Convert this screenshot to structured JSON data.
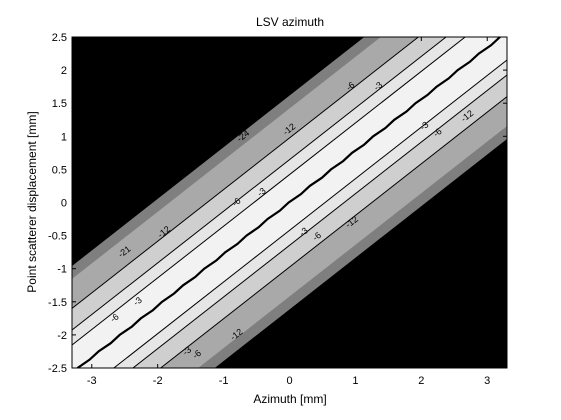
{
  "chart_data": {
    "type": "contour",
    "title": "LSV azimuth",
    "xlabel": "Azimuth [mm]",
    "ylabel": "Point scatterer displacement [mm]",
    "xlim": [
      -3.3,
      3.3
    ],
    "ylim": [
      -2.5,
      2.5
    ],
    "x_ticks": [
      -3,
      -2,
      -1,
      0,
      1,
      2,
      3
    ],
    "x_tick_labels": [
      "-3",
      "-2",
      "-1",
      "0",
      "1",
      "2",
      "3"
    ],
    "y_ticks": [
      2.5,
      2,
      1.5,
      1,
      0.5,
      0,
      -0.5,
      -1,
      -1.5,
      -2,
      -2.5
    ],
    "y_tick_labels": [
      "2.5",
      "2",
      "1.5",
      "1",
      "0.5",
      "0",
      "-0.5",
      "-1",
      "-1.5",
      "-2",
      "-2.5"
    ],
    "levels": [
      -24,
      -21,
      -12,
      -6,
      -3,
      0
    ],
    "band_colors": {
      "below_-24": "#000000",
      "-24_to_-21": "#7f7f7f",
      "-21_to_-12": "#a9a9a9",
      "-12_to_-6": "#cfcfcf",
      "-6_to_-3": "#e6e6e6",
      "-3_to_0": "#f2f2f2"
    },
    "ridge_line": "y = 0.78 * x",
    "level_offsets_along_x": {
      "-3": 0.54,
      "-6": 0.83,
      "-12": 1.25,
      "-21": 1.82,
      "-24": 2.07
    },
    "contour_labels": [
      {
        "text": "-24",
        "x": -0.7,
        "y": 1.0
      },
      {
        "text": "-12",
        "x": 0.0,
        "y": 1.1
      },
      {
        "text": "-6",
        "x": 0.93,
        "y": 1.75
      },
      {
        "text": "-3",
        "x": 1.35,
        "y": 1.75
      },
      {
        "text": "-6",
        "x": -0.8,
        "y": 0.0
      },
      {
        "text": "-3",
        "x": -0.42,
        "y": 0.15
      },
      {
        "text": "-3",
        "x": 2.05,
        "y": 1.15
      },
      {
        "text": "-6",
        "x": 2.25,
        "y": 1.05
      },
      {
        "text": "-12",
        "x": 2.7,
        "y": 1.3
      },
      {
        "text": "-12",
        "x": -1.9,
        "y": -0.45
      },
      {
        "text": "-3",
        "x": 0.22,
        "y": -0.45
      },
      {
        "text": "-6",
        "x": 0.42,
        "y": -0.52
      },
      {
        "text": "-12",
        "x": 0.95,
        "y": -0.3
      },
      {
        "text": "-21",
        "x": -2.5,
        "y": -0.75
      },
      {
        "text": "-6",
        "x": -2.65,
        "y": -1.75
      },
      {
        "text": "-3",
        "x": -2.3,
        "y": -1.5
      },
      {
        "text": "-3",
        "x": -1.55,
        "y": -2.25
      },
      {
        "text": "-6",
        "x": -1.4,
        "y": -2.3
      },
      {
        "text": "-12",
        "x": -0.8,
        "y": -2.0
      }
    ]
  }
}
